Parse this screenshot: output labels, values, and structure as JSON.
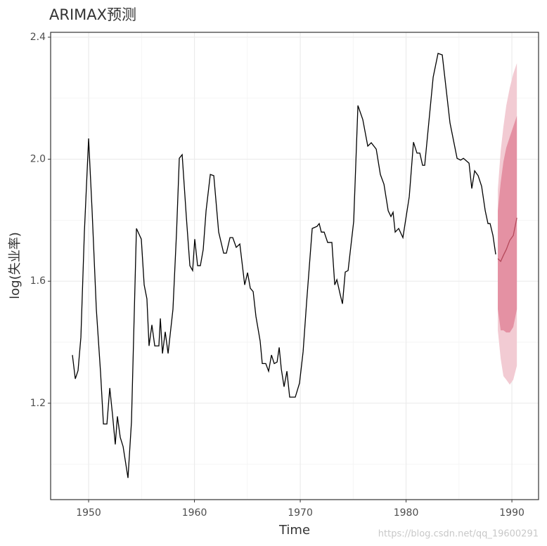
{
  "chart_data": {
    "type": "line",
    "title": "ARIMAX预测",
    "x_label": "Time",
    "y_label": "log(失业率)",
    "watermark": "https://blog.csdn.net/qq_19600291",
    "xlim": [
      1946.41,
      1992.52
    ],
    "ylim": [
      0.884,
      2.416
    ],
    "xticks": [
      1950,
      1960,
      1970,
      1980,
      1990
    ],
    "yticks": [
      {
        "value": 1.2,
        "label": "1.2"
      },
      {
        "value": 1.6,
        "label": "1.6"
      },
      {
        "value": 2.0,
        "label": "2.0"
      },
      {
        "value": 2.4,
        "label": "2.4"
      }
    ],
    "minor_xticks": [
      1955,
      1965,
      1975,
      1985
    ],
    "minor_yticks": [
      1.0,
      1.4,
      1.8,
      2.2
    ],
    "grid": true,
    "color": "#000000",
    "x": [
      1948.47,
      1948.74,
      1949.0,
      1949.27,
      1949.6,
      1950.0,
      1950.33,
      1950.73,
      1951.13,
      1951.4,
      1951.73,
      1952.0,
      1952.26,
      1952.52,
      1952.72,
      1952.99,
      1953.26,
      1953.72,
      1954.05,
      1954.52,
      1954.98,
      1955.25,
      1955.51,
      1955.71,
      1955.98,
      1956.25,
      1956.64,
      1956.78,
      1956.98,
      1957.24,
      1957.51,
      1957.97,
      1958.31,
      1958.57,
      1958.84,
      1959.24,
      1959.57,
      1959.83,
      1960.03,
      1960.3,
      1960.56,
      1960.83,
      1961.1,
      1961.5,
      1961.83,
      1962.29,
      1962.76,
      1963.02,
      1963.36,
      1963.62,
      1963.95,
      1964.29,
      1964.75,
      1965.02,
      1965.28,
      1965.55,
      1965.81,
      1966.21,
      1966.41,
      1966.74,
      1967.01,
      1967.28,
      1967.54,
      1967.81,
      1968.01,
      1968.21,
      1968.47,
      1968.74,
      1969.0,
      1969.53,
      1969.93,
      1970.27,
      1970.6,
      1971.13,
      1971.59,
      1971.79,
      1971.99,
      1972.26,
      1972.59,
      1972.99,
      1973.26,
      1973.46,
      1973.79,
      1973.99,
      1974.25,
      1974.52,
      1975.05,
      1975.45,
      1975.91,
      1976.38,
      1976.71,
      1977.18,
      1977.57,
      1977.91,
      1978.31,
      1978.57,
      1978.77,
      1978.97,
      1979.3,
      1979.7,
      1980.3,
      1980.7,
      1981.03,
      1981.3,
      1981.56,
      1981.76,
      1982.56,
      1983.02,
      1983.42,
      1984.15,
      1984.82,
      1985.15,
      1985.42,
      1985.95,
      1986.21,
      1986.48,
      1986.81,
      1987.14,
      1987.48,
      1987.74,
      1987.94,
      1988.21,
      1988.47
    ],
    "values": [
      1.358,
      1.28,
      1.307,
      1.416,
      1.761,
      2.068,
      1.831,
      1.508,
      1.3,
      1.132,
      1.132,
      1.25,
      1.162,
      1.065,
      1.157,
      1.088,
      1.058,
      0.955,
      1.139,
      1.773,
      1.738,
      1.588,
      1.542,
      1.388,
      1.457,
      1.388,
      1.388,
      1.478,
      1.363,
      1.434,
      1.363,
      1.508,
      1.761,
      2.003,
      2.015,
      1.808,
      1.651,
      1.635,
      1.738,
      1.651,
      1.651,
      1.704,
      1.831,
      1.95,
      1.946,
      1.761,
      1.692,
      1.692,
      1.743,
      1.743,
      1.711,
      1.722,
      1.588,
      1.628,
      1.577,
      1.566,
      1.485,
      1.404,
      1.33,
      1.33,
      1.305,
      1.358,
      1.33,
      1.335,
      1.383,
      1.312,
      1.254,
      1.305,
      1.22,
      1.22,
      1.266,
      1.369,
      1.531,
      1.773,
      1.78,
      1.789,
      1.761,
      1.761,
      1.727,
      1.727,
      1.588,
      1.605,
      1.554,
      1.526,
      1.63,
      1.635,
      1.796,
      2.176,
      2.13,
      2.043,
      2.054,
      2.033,
      1.95,
      1.918,
      1.831,
      1.812,
      1.826,
      1.761,
      1.773,
      1.743,
      1.877,
      2.056,
      2.02,
      2.02,
      1.98,
      1.98,
      2.269,
      2.347,
      2.342,
      2.119,
      2.003,
      1.997,
      2.003,
      1.987,
      1.904,
      1.962,
      1.946,
      1.911,
      1.831,
      1.789,
      1.789,
      1.75,
      1.688
    ],
    "forecast": {
      "color": "#b5495b",
      "band80_color": "#e491a3",
      "band95_color": "#f2cbd3",
      "x": [
        1988.67,
        1988.94,
        1989.2,
        1989.47,
        1989.8,
        1990.13,
        1990.47
      ],
      "values": [
        1.674,
        1.665,
        1.685,
        1.704,
        1.734,
        1.75,
        1.808
      ],
      "lower80": [
        1.508,
        1.439,
        1.439,
        1.432,
        1.432,
        1.45,
        1.508
      ],
      "upper80": [
        1.831,
        1.923,
        1.992,
        2.038,
        2.073,
        2.107,
        2.142
      ],
      "lower95": [
        1.439,
        1.346,
        1.289,
        1.277,
        1.261,
        1.277,
        1.323
      ],
      "upper95": [
        1.9,
        2.027,
        2.107,
        2.176,
        2.234,
        2.28,
        2.315
      ]
    }
  }
}
